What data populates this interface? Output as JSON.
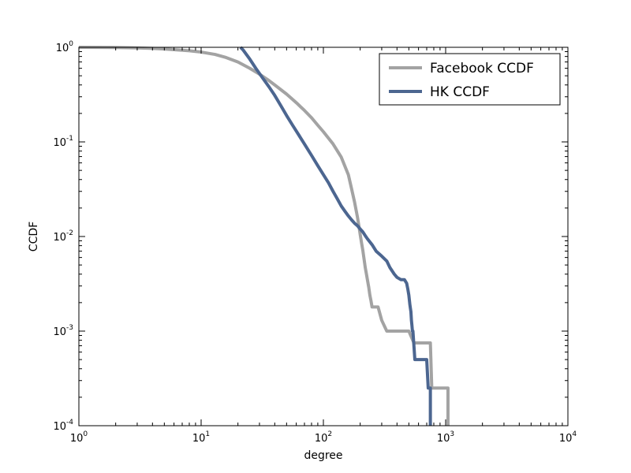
{
  "chart_data": {
    "type": "line",
    "xlabel": "degree",
    "ylabel": "CCDF",
    "x_scale": "log",
    "y_scale": "log",
    "xlim": [
      1,
      10000
    ],
    "ylim": [
      0.0001,
      1
    ],
    "grid": false,
    "legend_position": "top-right",
    "x_ticks": [
      {
        "base": "10",
        "exp": "0",
        "value": 1
      },
      {
        "base": "10",
        "exp": "1",
        "value": 10
      },
      {
        "base": "10",
        "exp": "2",
        "value": 100
      },
      {
        "base": "10",
        "exp": "3",
        "value": 1000
      },
      {
        "base": "10",
        "exp": "4",
        "value": 10000
      }
    ],
    "y_ticks": [
      {
        "base": "10",
        "exp": "0",
        "value": 1
      },
      {
        "base": "10",
        "exp": "-1",
        "value": 0.1
      },
      {
        "base": "10",
        "exp": "-2",
        "value": 0.01
      },
      {
        "base": "10",
        "exp": "-3",
        "value": 0.001
      },
      {
        "base": "10",
        "exp": "-4",
        "value": 0.0001
      }
    ],
    "series": [
      {
        "name": "Facebook CCDF",
        "color": "#a3a3a3",
        "x": [
          1,
          2,
          3,
          4,
          5,
          6,
          8,
          10,
          13,
          16,
          20,
          25,
          30,
          35,
          40,
          50,
          60,
          70,
          80,
          90,
          100,
          120,
          140,
          160,
          170,
          180,
          190,
          195,
          200,
          205,
          210,
          215,
          220,
          225,
          230,
          235,
          240,
          245,
          250,
          260,
          280,
          300,
          330,
          400,
          500,
          550,
          600,
          700,
          750,
          770,
          780,
          800,
          900,
          1000,
          1045,
          1045
        ],
        "y": [
          1.0,
          0.995,
          0.985,
          0.975,
          0.96,
          0.945,
          0.92,
          0.89,
          0.84,
          0.78,
          0.7,
          0.6,
          0.52,
          0.455,
          0.4,
          0.32,
          0.26,
          0.215,
          0.18,
          0.15,
          0.128,
          0.095,
          0.069,
          0.045,
          0.032,
          0.023,
          0.016,
          0.013,
          0.0105,
          0.0086,
          0.0072,
          0.0058,
          0.0047,
          0.004,
          0.0034,
          0.0029,
          0.0024,
          0.0021,
          0.0018,
          0.0018,
          0.0018,
          0.0013,
          0.001,
          0.001,
          0.001,
          0.00075,
          0.00075,
          0.00075,
          0.00075,
          0.00025,
          0.00025,
          0.00025,
          0.00025,
          0.00025,
          0.00025,
          0.0001
        ]
      },
      {
        "name": "HK CCDF",
        "color": "#4c6690",
        "x": [
          21,
          22,
          25,
          28,
          32,
          36,
          40,
          45,
          50,
          56,
          63,
          70,
          80,
          90,
          100,
          110,
          120,
          130,
          140,
          150,
          160,
          170,
          180,
          190,
          200,
          210,
          220,
          230,
          250,
          270,
          300,
          330,
          350,
          380,
          400,
          430,
          460,
          480,
          490,
          500,
          510,
          520,
          525,
          530,
          535,
          540,
          560,
          600,
          650,
          700,
          720,
          740,
          750,
          750
        ],
        "y": [
          1.0,
          0.94,
          0.75,
          0.6,
          0.47,
          0.38,
          0.31,
          0.24,
          0.19,
          0.15,
          0.118,
          0.095,
          0.072,
          0.056,
          0.045,
          0.037,
          0.03,
          0.025,
          0.021,
          0.0185,
          0.0165,
          0.015,
          0.0138,
          0.013,
          0.012,
          0.0112,
          0.0102,
          0.0094,
          0.0082,
          0.007,
          0.0062,
          0.0055,
          0.0047,
          0.004,
          0.0037,
          0.0035,
          0.0035,
          0.0032,
          0.0028,
          0.0024,
          0.0019,
          0.0016,
          0.0013,
          0.00115,
          0.001,
          0.001,
          0.0005,
          0.0005,
          0.0005,
          0.0005,
          0.00025,
          0.00025,
          0.00025,
          0.0001
        ]
      }
    ]
  }
}
